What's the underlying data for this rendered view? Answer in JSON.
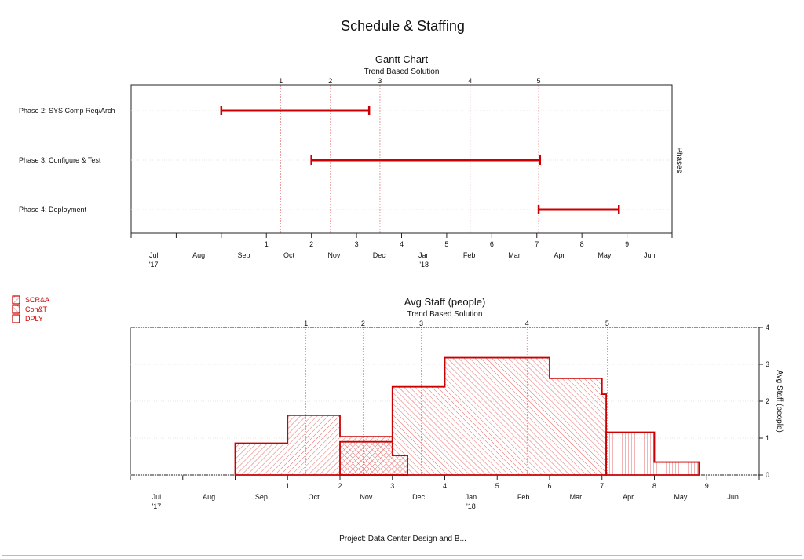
{
  "title": "Schedule & Staffing",
  "footer": "Project: Data Center Design and B...",
  "colors": {
    "accent": "#cc0000",
    "milestone": "#e88080",
    "grid": "#e6e6e6"
  },
  "chart_data": [
    {
      "type": "gantt",
      "title": "Gantt Chart",
      "subtitle": "Trend Based Solution",
      "ylabel": "Phases",
      "xlim": [
        -2,
        10
      ],
      "month_labels": [
        "Jul",
        "Aug",
        "Sep",
        "Oct",
        "Nov",
        "Dec",
        "Jan",
        "Feb",
        "Mar",
        "Apr",
        "May",
        "Jun"
      ],
      "year_labels": [
        {
          "month_index": 0,
          "label": "'17"
        },
        {
          "month_index": 6,
          "label": "'18"
        }
      ],
      "x_ticks": [
        1,
        2,
        3,
        4,
        5,
        6,
        7,
        8,
        9
      ],
      "milestones": [
        {
          "label": "1",
          "x": 1.32
        },
        {
          "label": "2",
          "x": 2.42
        },
        {
          "label": "3",
          "x": 3.52
        },
        {
          "label": "4",
          "x": 5.52
        },
        {
          "label": "5",
          "x": 7.04
        }
      ],
      "phases": [
        {
          "name": "Phase 2: SYS Comp Req/Arch",
          "start": 0,
          "end": 3.28
        },
        {
          "name": "Phase 3: Configure & Test",
          "start": 2.0,
          "end": 7.07
        },
        {
          "name": "Phase 4: Deployment",
          "start": 7.04,
          "end": 8.82
        }
      ]
    },
    {
      "type": "step-area",
      "title": "Avg Staff (people)",
      "subtitle": "Trend Based Solution",
      "ylabel": "Avg Staff (people)",
      "xlim": [
        -2,
        10
      ],
      "ylim": [
        0,
        4
      ],
      "y_ticks": [
        0,
        1,
        2,
        3,
        4
      ],
      "month_labels": [
        "Jul",
        "Aug",
        "Sep",
        "Oct",
        "Nov",
        "Dec",
        "Jan",
        "Feb",
        "Mar",
        "Apr",
        "May",
        "Jun"
      ],
      "year_labels": [
        {
          "month_index": 0,
          "label": "'17"
        },
        {
          "month_index": 6,
          "label": "'18"
        }
      ],
      "x_ticks": [
        1,
        2,
        3,
        4,
        5,
        6,
        7,
        8,
        9
      ],
      "milestones": [
        {
          "label": "1",
          "x": 1.35
        },
        {
          "label": "2",
          "x": 2.44
        },
        {
          "label": "3",
          "x": 3.55
        },
        {
          "label": "4",
          "x": 5.57
        },
        {
          "label": "5",
          "x": 7.1
        }
      ],
      "legend_position": "top-left",
      "series": [
        {
          "name": "SCR&A",
          "hatch": "diagonal-up",
          "steps": [
            [
              0,
              1,
              0.86
            ],
            [
              1,
              2,
              1.62
            ],
            [
              2,
              3,
              1.04
            ],
            [
              3,
              3.29,
              0.53
            ]
          ]
        },
        {
          "name": "Con&T",
          "hatch": "diagonal-down",
          "steps": [
            [
              2,
              3,
              0.9
            ],
            [
              3,
              4,
              2.39
            ],
            [
              4,
              6,
              3.18
            ],
            [
              6,
              7,
              2.62
            ],
            [
              7,
              7.08,
              2.19
            ]
          ]
        },
        {
          "name": "DPLY",
          "hatch": "vertical",
          "steps": [
            [
              7.08,
              8,
              1.16
            ],
            [
              8,
              8.85,
              0.35
            ]
          ]
        }
      ]
    }
  ]
}
